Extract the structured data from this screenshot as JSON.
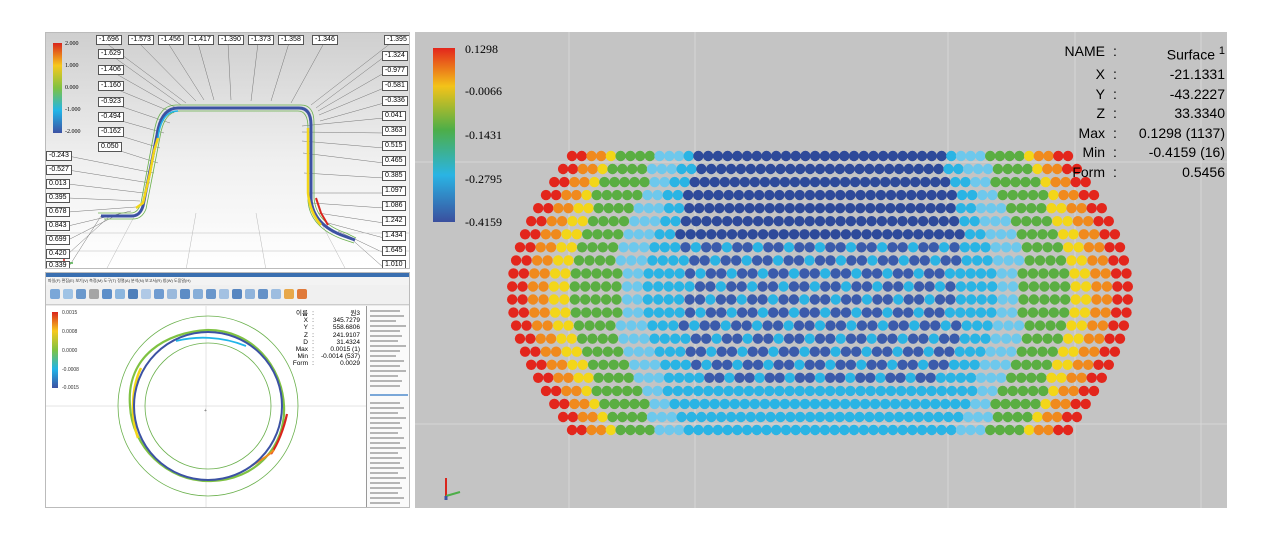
{
  "top_left": {
    "scale_labels": [
      "2.000",
      "1.000",
      "0.000",
      "-1.000",
      "-2.000"
    ],
    "top_labels": [
      "-1.696",
      "-1.573",
      "-1.456",
      "-1.417",
      "-1.390",
      "-1.373",
      "-1.358",
      "-1.346",
      "-1.395"
    ],
    "left_inner_labels": [
      "-1.629",
      "-1.406",
      "-1.160",
      "-0.923",
      "-0.494",
      "-0.162",
      "0.050"
    ],
    "left_outer_labels": [
      "-0.243",
      "-0.527",
      "0.013",
      "0.395",
      "0.678",
      "0.843",
      "0.699",
      "0.420",
      "0.339"
    ],
    "right_labels": [
      "-1.324",
      "-0.977",
      "-0.581",
      "-0.336",
      "0.041",
      "0.363",
      "0.515",
      "0.465",
      "0.385",
      "1.097",
      "1.086",
      "1.242",
      "1.434",
      "1.645",
      "1.010"
    ]
  },
  "bottom_left": {
    "menu_text": "파일(F)  편집(E)  보기(V)  측정(M)  도구(T)  정렬(A)  분석(N)  보고서(R)  창(W)  도움말(H)",
    "scale_labels": [
      "0.0015",
      "0.0008",
      "0.0000",
      "-0.0008",
      "-0.0015"
    ],
    "info": [
      {
        "key": "이름",
        "value": "원3"
      },
      {
        "key": "X",
        "value": "345.7279"
      },
      {
        "key": "Y",
        "value": "558.6806"
      },
      {
        "key": "Z",
        "value": "241.9107"
      },
      {
        "key": "D",
        "value": "31.4324"
      },
      {
        "key": "Max",
        "value": "0.0015 (1)"
      },
      {
        "key": "Min",
        "value": "-0.0014 (537)"
      },
      {
        "key": "Form",
        "value": "0.0029"
      }
    ]
  },
  "right_panel": {
    "scale_labels": [
      "0.1298",
      "-0.0066",
      "-0.1431",
      "-0.2795",
      "-0.4159"
    ],
    "info": {
      "name": {
        "key": "NAME",
        "value": "Surface",
        "sup": "1"
      },
      "rows": [
        {
          "key": "X",
          "value": "-21.1331"
        },
        {
          "key": "Y",
          "value": "-43.2227"
        },
        {
          "key": "Z",
          "value": "33.3340"
        },
        {
          "key": "Max",
          "value": "0.1298 (1137)"
        },
        {
          "key": "Min",
          "value": "-0.4159 (16)"
        },
        {
          "key": "Form",
          "value": "0.5456"
        }
      ]
    },
    "colors": {
      "red": "#e3261c",
      "orange": "#f08a1d",
      "yellow": "#f3d619",
      "green": "#5aae42",
      "lightblue": "#6ec8ec",
      "cyan": "#2ab4e4",
      "blue": "#3b5bab",
      "darkblue": "#2e4a9a"
    }
  }
}
